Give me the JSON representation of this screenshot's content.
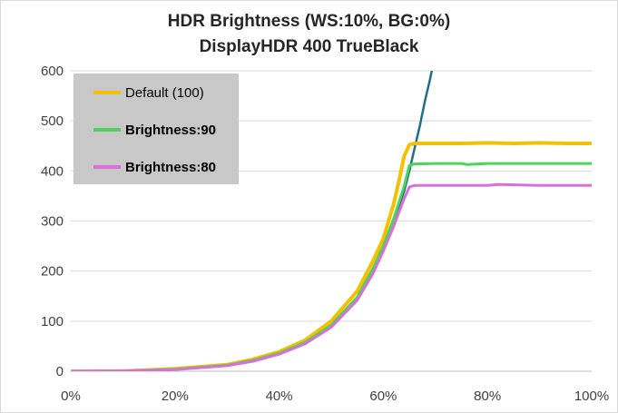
{
  "chart_data": {
    "type": "line",
    "title": "HDR Brightness (WS:10%, BG:0%)",
    "subtitle": "DisplayHDR 400 TrueBlack",
    "xlabel": "",
    "ylabel": "",
    "xlim": [
      0,
      100
    ],
    "ylim": [
      0,
      600
    ],
    "x_ticks": [
      "0%",
      "20%",
      "40%",
      "60%",
      "80%",
      "100%"
    ],
    "x_tick_values": [
      0,
      20,
      40,
      60,
      80,
      100
    ],
    "y_ticks": [
      "0",
      "100",
      "200",
      "300",
      "400",
      "500",
      "600"
    ],
    "y_tick_values": [
      0,
      100,
      200,
      300,
      400,
      500,
      600
    ],
    "grid": "horizontal",
    "legend_position": "top-left",
    "series": [
      {
        "name": "",
        "color": "#1f6e8c",
        "x": [
          0,
          10,
          20,
          30,
          35,
          40,
          45,
          50,
          55,
          58,
          60,
          62,
          64,
          65,
          66,
          67,
          68,
          69,
          69.5
        ],
        "y": [
          0,
          1,
          4,
          12,
          22,
          36,
          57,
          90,
          145,
          200,
          245,
          300,
          360,
          400,
          445,
          490,
          540,
          585,
          610
        ]
      },
      {
        "name": "Default (100)",
        "color": "#f2c200",
        "x": [
          0,
          10,
          14,
          20,
          30,
          35,
          40,
          45,
          50,
          55,
          58,
          60,
          62,
          63,
          64,
          65,
          66,
          70,
          75,
          80,
          85,
          90,
          95,
          100
        ],
        "y": [
          0,
          0.5,
          2,
          5,
          13,
          24,
          39,
          62,
          100,
          160,
          220,
          265,
          335,
          380,
          430,
          452,
          455,
          455,
          455,
          456,
          455,
          456,
          455,
          455
        ]
      },
      {
        "name": "Brightness:90",
        "color": "#4cd45a",
        "x": [
          0,
          10,
          20,
          30,
          35,
          40,
          45,
          50,
          55,
          58,
          60,
          62,
          64,
          65,
          66,
          70,
          75,
          76,
          80,
          90,
          100
        ],
        "y": [
          0,
          0.5,
          4,
          12,
          22,
          36,
          58,
          92,
          148,
          205,
          250,
          305,
          370,
          411,
          414,
          415,
          415,
          413,
          415,
          415,
          415
        ]
      },
      {
        "name": "Brightness:80",
        "color": "#d870d8",
        "x": [
          0,
          10,
          20,
          30,
          35,
          40,
          45,
          50,
          55,
          58,
          60,
          62,
          64,
          65,
          66,
          70,
          80,
          82,
          90,
          100
        ],
        "y": [
          0,
          0.5,
          3,
          11,
          20,
          34,
          55,
          88,
          142,
          195,
          240,
          290,
          345,
          368,
          371,
          371,
          371,
          373,
          371,
          371
        ]
      }
    ]
  }
}
